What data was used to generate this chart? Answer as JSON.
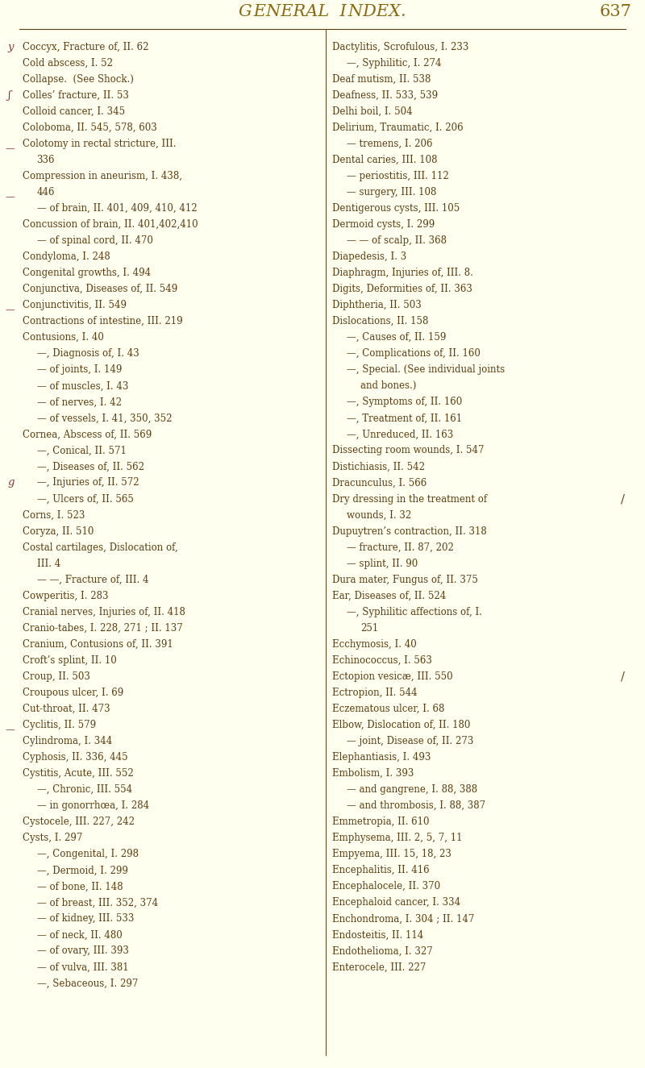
{
  "bg_color": "#fffff0",
  "title_color": "#8B6914",
  "text_color": "#5C3D11",
  "title_fontsize": 15,
  "body_fontsize": 8.5,
  "left_col": [
    {
      "text": "Coccyx, Fracture of, II. 62",
      "indent": 0
    },
    {
      "text": "Cold abscess, I. 52",
      "indent": 0
    },
    {
      "text": "Collapse.  (See Shock.)",
      "indent": 0
    },
    {
      "text": "Colles’ fracture, II. 53",
      "indent": 0
    },
    {
      "text": "Colloid cancer, I. 345",
      "indent": 0
    },
    {
      "text": "Coloboma, II. 545, 578, 603",
      "indent": 0
    },
    {
      "text": "Colotomy in rectal stricture, III.",
      "indent": 0,
      "cont": "336"
    },
    {
      "text": "Compression in aneurism, I. 438,",
      "indent": 0,
      "cont": "446"
    },
    {
      "text": "— of brain, II. 401, 409, 410, 412",
      "indent": 1
    },
    {
      "text": "Concussion of brain, II. 401,402,410",
      "indent": 0
    },
    {
      "text": "— of spinal cord, II. 470",
      "indent": 1
    },
    {
      "text": "Condyloma, I. 248",
      "indent": 0
    },
    {
      "text": "Congenital growths, I. 494",
      "indent": 0
    },
    {
      "text": "Conjunctiva, Diseases of, II. 549",
      "indent": 0
    },
    {
      "text": "Conjunctivitis, II. 549",
      "indent": 0
    },
    {
      "text": "Contractions of intestine, III. 219",
      "indent": 0
    },
    {
      "text": "Contusions, I. 40",
      "indent": 0
    },
    {
      "text": "—, Diagnosis of, I. 43",
      "indent": 1
    },
    {
      "text": "— of joints, I. 149",
      "indent": 1
    },
    {
      "text": "— of muscles, I. 43",
      "indent": 1
    },
    {
      "text": "— of nerves, I. 42",
      "indent": 1
    },
    {
      "text": "— of vessels, I. 41, 350, 352",
      "indent": 1
    },
    {
      "text": "Cornea, Abscess of, II. 569",
      "indent": 0
    },
    {
      "text": "—, Conical, II. 571",
      "indent": 1
    },
    {
      "text": "—, Diseases of, II. 562",
      "indent": 1
    },
    {
      "text": "—, Injuries of, II. 572",
      "indent": 1
    },
    {
      "text": "—, Ulcers of, II. 565",
      "indent": 1
    },
    {
      "text": "Corns, I. 523",
      "indent": 0
    },
    {
      "text": "Coryza, II. 510",
      "indent": 0
    },
    {
      "text": "Costal cartilages, Dislocation of,",
      "indent": 0,
      "cont": "III. 4"
    },
    {
      "text": "— —, Fracture of, III. 4",
      "indent": 1
    },
    {
      "text": "Cowperitis, I. 283",
      "indent": 0
    },
    {
      "text": "Cranial nerves, Injuries of, II. 418",
      "indent": 0
    },
    {
      "text": "Cranio-tabes, I. 228, 271 ; II. 137",
      "indent": 0
    },
    {
      "text": "Cranium, Contusions of, II. 391",
      "indent": 0
    },
    {
      "text": "Croft’s splint, II. 10",
      "indent": 0
    },
    {
      "text": "Croup, II. 503",
      "indent": 0
    },
    {
      "text": "Croupous ulcer, I. 69",
      "indent": 0
    },
    {
      "text": "Cut-throat, II. 473",
      "indent": 0
    },
    {
      "text": "Cyclitis, II. 579",
      "indent": 0
    },
    {
      "text": "Cylindroma, I. 344",
      "indent": 0
    },
    {
      "text": "Cyphosis, II. 336, 445",
      "indent": 0
    },
    {
      "text": "Cystitis, Acute, III. 552",
      "indent": 0
    },
    {
      "text": "—, Chronic, III. 554",
      "indent": 1
    },
    {
      "text": "— in gonorrhœa, I. 284",
      "indent": 1
    },
    {
      "text": "Cystocele, III. 227, 242",
      "indent": 0
    },
    {
      "text": "Cysts, I. 297",
      "indent": 0
    },
    {
      "text": "—, Congenital, I. 298",
      "indent": 1
    },
    {
      "text": "—, Dermoid, I. 299",
      "indent": 1
    },
    {
      "text": "— of bone, II. 148",
      "indent": 1
    },
    {
      "text": "— of breast, III. 352, 374",
      "indent": 1
    },
    {
      "text": "— of kidney, III. 533",
      "indent": 1
    },
    {
      "text": "— of neck, II. 480",
      "indent": 1
    },
    {
      "text": "— of ovary, III. 393",
      "indent": 1
    },
    {
      "text": "— of vulva, III. 381",
      "indent": 1
    },
    {
      "text": "—, Sebaceous, I. 297",
      "indent": 1
    }
  ],
  "right_col": [
    {
      "text": "Dactylitis, Scrofulous, I. 233",
      "indent": 0
    },
    {
      "text": "—, Syphilitic, I. 274",
      "indent": 1
    },
    {
      "text": "Deaf mutism, II. 538",
      "indent": 0
    },
    {
      "text": "Deafness, II. 533, 539",
      "indent": 0
    },
    {
      "text": "Delhi boil, I. 504",
      "indent": 0
    },
    {
      "text": "Delirium, Traumatic, I. 206",
      "indent": 0
    },
    {
      "text": "— tremens, I. 206",
      "indent": 1
    },
    {
      "text": "Dental caries, III. 108",
      "indent": 0
    },
    {
      "text": "— periostitis, III. 112",
      "indent": 1
    },
    {
      "text": "— surgery, III. 108",
      "indent": 1
    },
    {
      "text": "Dentigerous cysts, III. 105",
      "indent": 0
    },
    {
      "text": "Dermoid cysts, I. 299",
      "indent": 0
    },
    {
      "text": "— — of scalp, II. 368",
      "indent": 1
    },
    {
      "text": "Diapedesis, I. 3",
      "indent": 0
    },
    {
      "text": "Diaphragm, Injuries of, III. 8.",
      "indent": 0
    },
    {
      "text": "Digits, Deformities of, II. 363",
      "indent": 0
    },
    {
      "text": "Diphtheria, II. 503",
      "indent": 0
    },
    {
      "text": "Dislocations, II. 158",
      "indent": 0
    },
    {
      "text": "—, Causes of, II. 159",
      "indent": 1
    },
    {
      "text": "—, Complications of, II. 160",
      "indent": 1
    },
    {
      "text": "—, Special. (See individual joints",
      "indent": 1,
      "cont": "and bones.)"
    },
    {
      "text": "—, Symptoms of, II. 160",
      "indent": 1
    },
    {
      "text": "—, Treatment of, II. 161",
      "indent": 1
    },
    {
      "text": "—, Unreduced, II. 163",
      "indent": 1
    },
    {
      "text": "Dissecting room wounds, I. 547",
      "indent": 0
    },
    {
      "text": "Distichiasis, II. 542",
      "indent": 0
    },
    {
      "text": "Dracunculus, I. 566",
      "indent": 0
    },
    {
      "text": "Dry dressing in the treatment of",
      "indent": 0,
      "cont": "wounds, I. 32"
    },
    {
      "text": "Dupuytren’s contraction, II. 318",
      "indent": 0
    },
    {
      "text": "— fracture, II. 87, 202",
      "indent": 1
    },
    {
      "text": "— splint, II. 90",
      "indent": 1
    },
    {
      "text": "Dura mater, Fungus of, II. 375",
      "indent": 0
    },
    {
      "text": "Ear, Diseases of, II. 524",
      "indent": 0
    },
    {
      "text": "—, Syphilitic affections of, I.",
      "indent": 1,
      "cont": "251"
    },
    {
      "text": "Ecchymosis, I. 40",
      "indent": 0
    },
    {
      "text": "Echinococcus, I. 563",
      "indent": 0
    },
    {
      "text": "Ectopion vesicæ, III. 550",
      "indent": 0
    },
    {
      "text": "Ectropion, II. 544",
      "indent": 0
    },
    {
      "text": "Eczematous ulcer, I. 68",
      "indent": 0
    },
    {
      "text": "Elbow, Dislocation of, II. 180",
      "indent": 0
    },
    {
      "text": "— joint, Disease of, II. 273",
      "indent": 1
    },
    {
      "text": "Elephantiasis, I. 493",
      "indent": 0
    },
    {
      "text": "Embolism, I. 393",
      "indent": 0
    },
    {
      "text": "— and gangrene, I. 88, 388",
      "indent": 1
    },
    {
      "text": "— and thrombosis, I. 88, 387",
      "indent": 1
    },
    {
      "text": "Emmetropia, II. 610",
      "indent": 0
    },
    {
      "text": "Emphysema, III. 2, 5, 7, 11",
      "indent": 0
    },
    {
      "text": "Empyema, III. 15, 18, 23",
      "indent": 0
    },
    {
      "text": "Encephalitis, II. 416",
      "indent": 0
    },
    {
      "text": "Encephalocele, II. 370",
      "indent": 0
    },
    {
      "text": "Encephaloid cancer, I. 334",
      "indent": 0
    },
    {
      "text": "Enchondroma, I. 304 ; II. 147",
      "indent": 0
    },
    {
      "text": "Endosteitis, II. 114",
      "indent": 0
    },
    {
      "text": "Endothelioma, I. 327",
      "indent": 0
    },
    {
      "text": "Enterocele, III. 227",
      "indent": 0
    }
  ]
}
